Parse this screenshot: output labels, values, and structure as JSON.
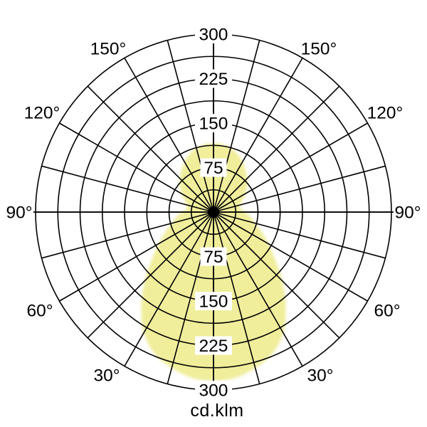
{
  "chart_data": {
    "type": "polar",
    "subtype": "photometric-intensity-distribution",
    "title": "",
    "unit_label": "cd.klm",
    "radial_axis": {
      "tick_values": [
        75,
        150,
        225,
        300
      ],
      "tick_texts": [
        "75",
        "150",
        "225",
        "300"
      ],
      "max": 300,
      "minor_step": 37.5,
      "gridline_circle_count": 8,
      "labels_shown_above_and_below_center": true
    },
    "angular_axis": {
      "spoke_step_deg": 15,
      "zero_direction": "down",
      "labels_deg": [
        150,
        120,
        90,
        60,
        30
      ],
      "label_texts": [
        "150°",
        "120°",
        "90°",
        "60°",
        "30°"
      ],
      "labels_on_both_sides": true
    },
    "series": [
      {
        "name": "luminous-intensity-curve",
        "symmetric_left_right": true,
        "gamma_deg_from_nadir": [
          0,
          7.5,
          15,
          22.5,
          30,
          37.5,
          45,
          52.5,
          60,
          67.5,
          75,
          82.5,
          90,
          97.5,
          105,
          112.5,
          120,
          127.5,
          135,
          142.5,
          150,
          157.5,
          165,
          172.5,
          180
        ],
        "values_cd_per_klm": [
          285,
          282,
          272,
          259,
          235,
          200,
          164,
          131,
          107,
          88,
          73,
          63,
          53,
          45,
          47,
          53,
          62,
          72,
          80,
          89,
          98,
          106,
          112,
          115,
          116
        ]
      }
    ],
    "legend": null,
    "grid_on": true,
    "colors": {
      "fill": "#f0ee9b",
      "grid": "#000000",
      "background": "#ffffff",
      "label_text": "#000000",
      "label_box": "#ffffff",
      "center_dot": "#000000"
    }
  }
}
